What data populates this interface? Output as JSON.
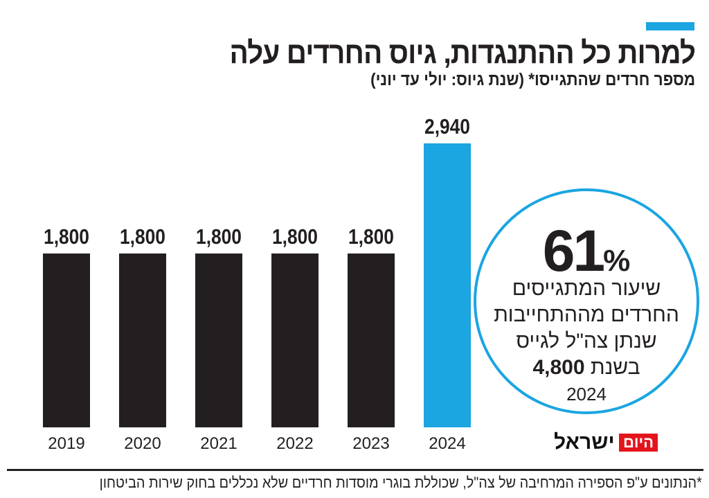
{
  "header": {
    "title": "למרות כל ההתנגדות, גיוס החרדים עלה",
    "subtitle": "מספר חרדים שהתגייסו* (שנת גיוס: יולי עד יוני)"
  },
  "chart_data": {
    "type": "bar",
    "categories": [
      "2019",
      "2020",
      "2021",
      "2022",
      "2023",
      "2024"
    ],
    "values": [
      1800,
      1800,
      1800,
      1800,
      1800,
      2940
    ],
    "value_labels": [
      "1,800",
      "1,800",
      "1,800",
      "1,800",
      "1,800",
      "2,940"
    ],
    "ylim": [
      0,
      2940
    ],
    "grid": false,
    "colors": {
      "default": "#231f20",
      "highlight": "#1ba5e1"
    },
    "highlight_category": "2024"
  },
  "callout": {
    "number": "61",
    "percent_sign": "%",
    "line1": "שיעור המתגייסים",
    "line2": "החרדים מההתחייבות",
    "line3": "שנתן צה\"ל לגייס",
    "target": "4,800",
    "line4": "בשנת",
    "year": "2024"
  },
  "logo": {
    "line1": "ישראל",
    "line2": "היום"
  },
  "footnote": "*הנתונים ע\"פ הספירה המרחיבה של צה\"ל, שכוללת בוגרי מוסדות חרדיים שלא נכללים בחוק שירות הביטחון"
}
